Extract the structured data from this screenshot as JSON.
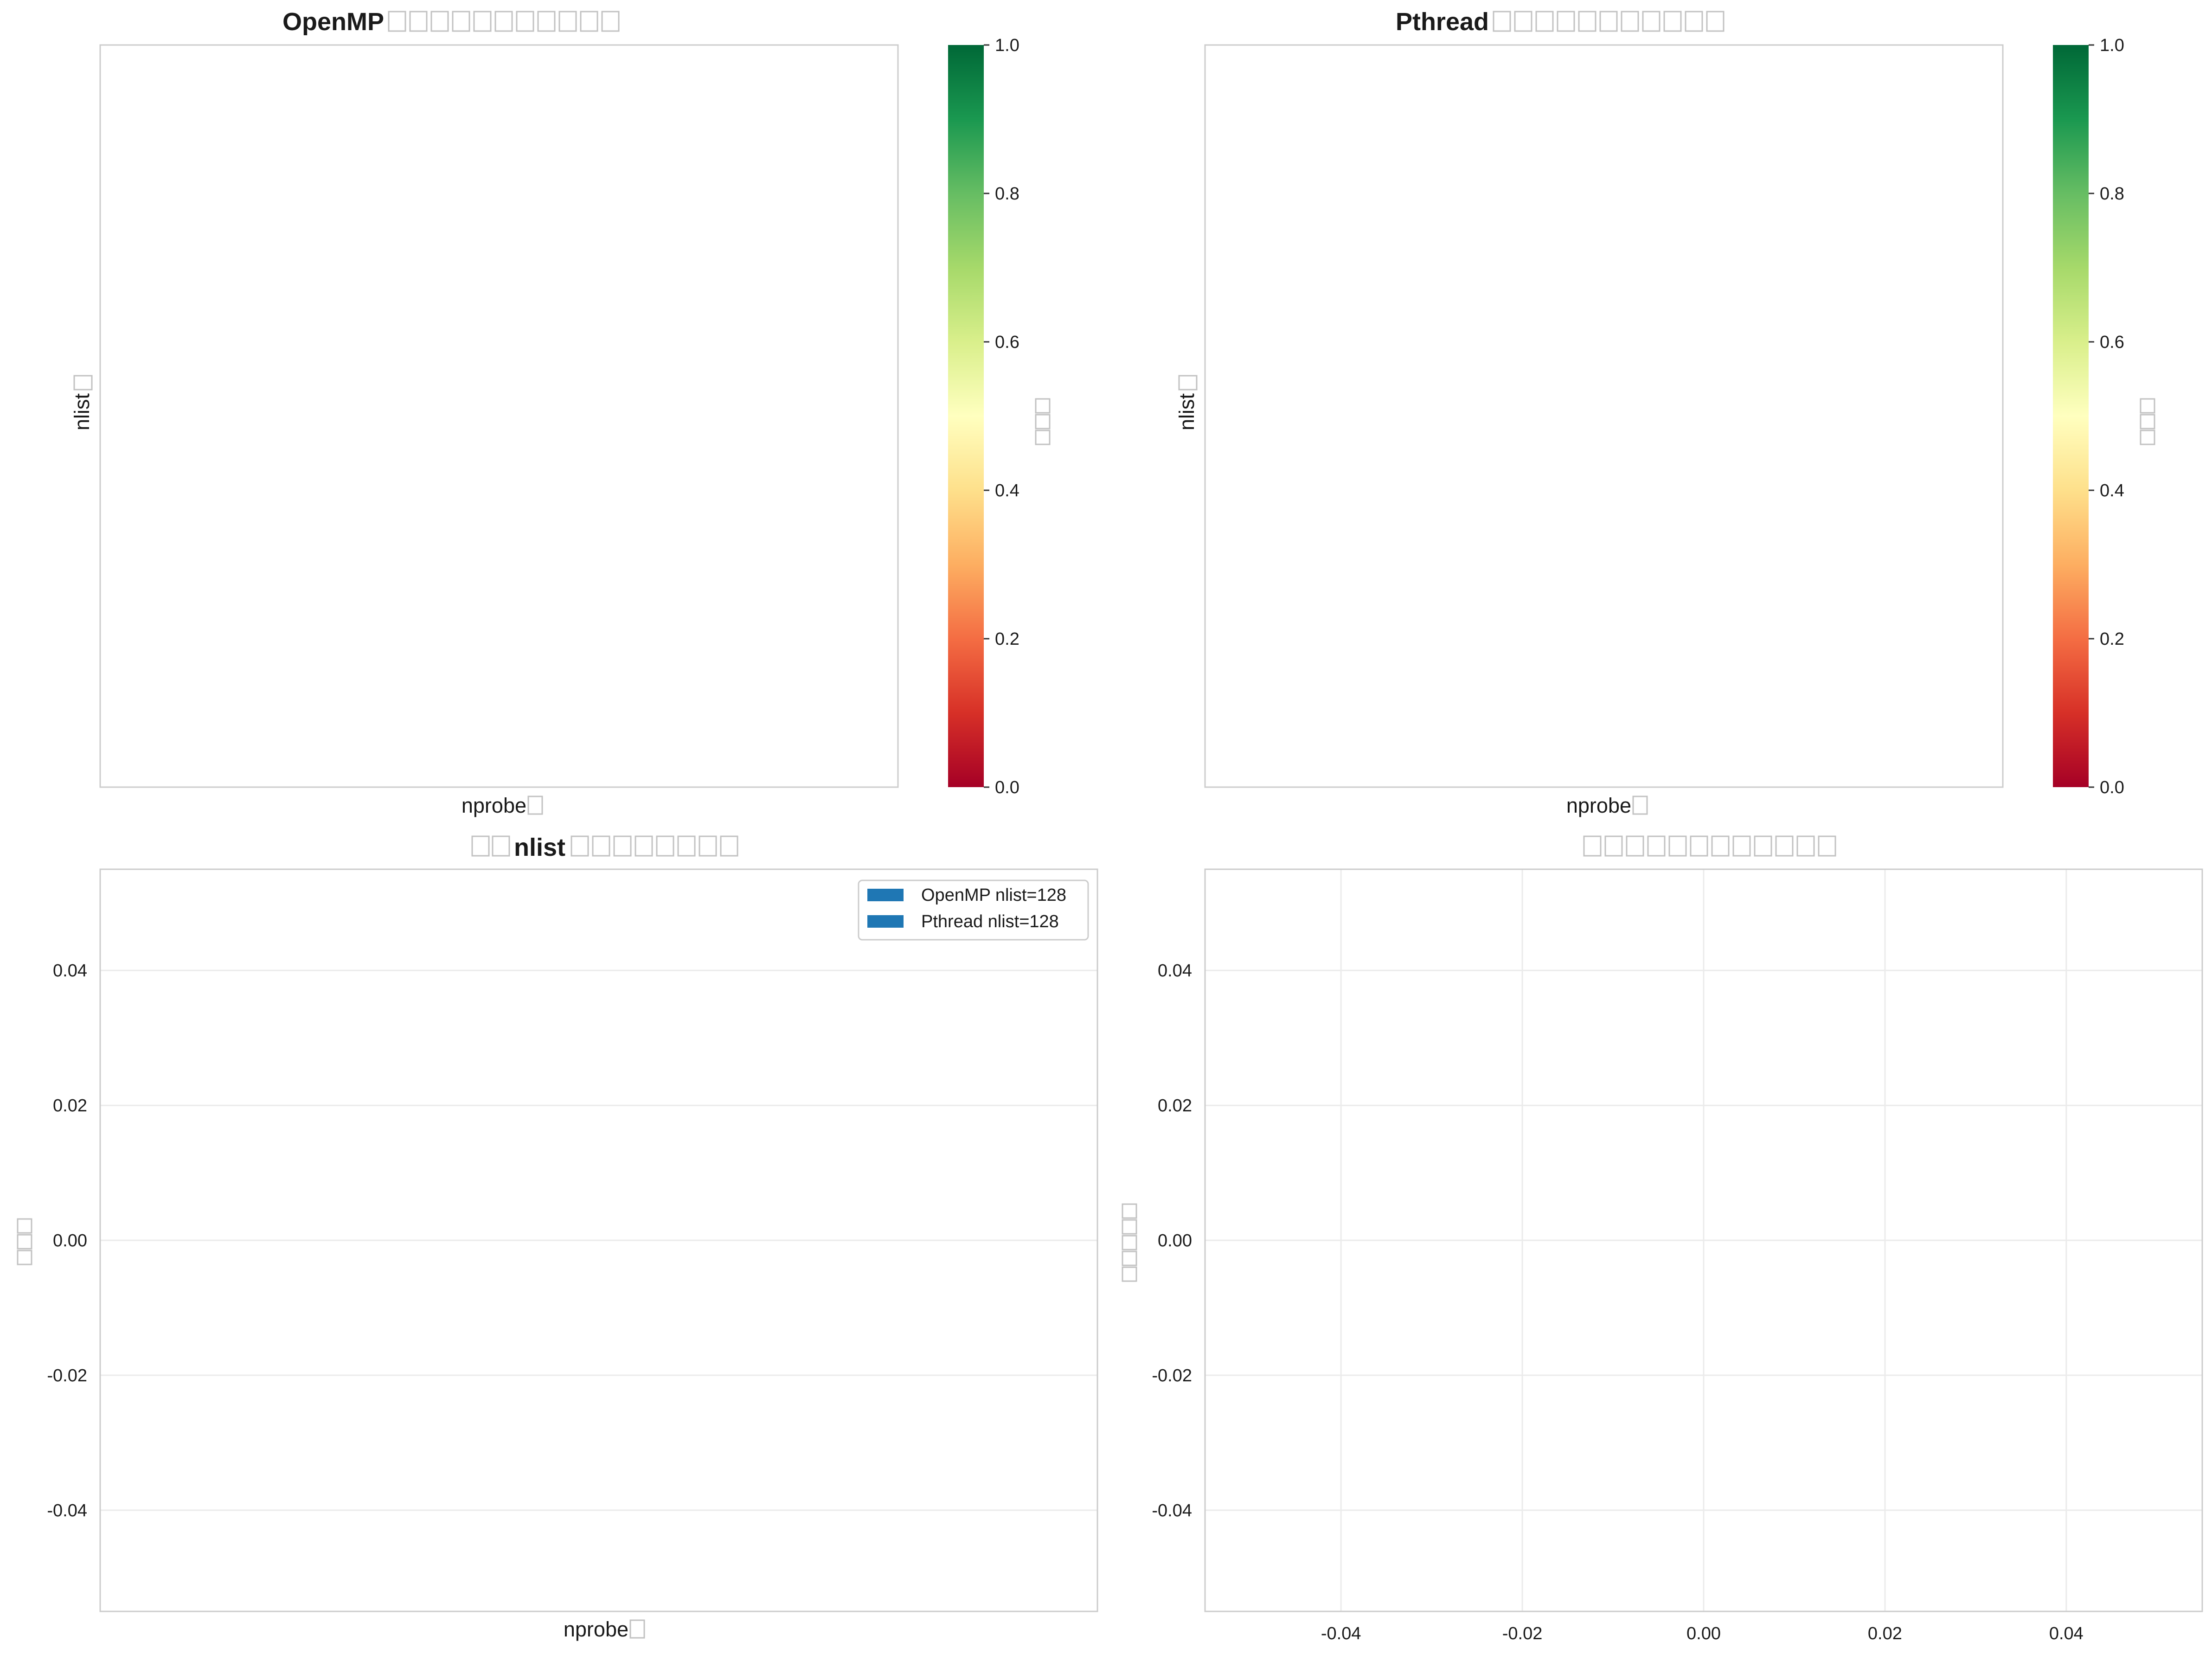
{
  "chart_data": [
    {
      "type": "heatmap",
      "title": "OpenMP",
      "xlabel": "nprobe",
      "ylabel": "nlist",
      "values": [],
      "colorbar": {
        "colormap": "RdYlGn",
        "range": [
          0.0,
          1.0
        ],
        "ticks": [
          "0.0",
          "0.2",
          "0.4",
          "0.6",
          "0.8",
          "1.0"
        ]
      }
    },
    {
      "type": "heatmap",
      "title": "Pthread",
      "xlabel": "nprobe",
      "ylabel": "nlist",
      "values": [],
      "colorbar": {
        "colormap": "RdYlGn",
        "range": [
          0.0,
          1.0
        ],
        "ticks": [
          "0.0",
          "0.2",
          "0.4",
          "0.6",
          "0.8",
          "1.0"
        ]
      }
    },
    {
      "type": "bar",
      "title": "nlist",
      "xlabel": "nprobe",
      "ylabel": "",
      "categories": [],
      "series": [
        {
          "name": "OpenMP nlist=128",
          "values": [],
          "color": "#1f77b4"
        },
        {
          "name": "Pthread nlist=128",
          "values": [],
          "color": "#1f77b4"
        }
      ],
      "ylim": [
        -0.055,
        0.055
      ],
      "yticks": [
        "0.04",
        "0.02",
        "0.00",
        "-0.02",
        "-0.04"
      ],
      "legend": "top-right",
      "grid": true
    },
    {
      "type": "scatter",
      "title": "",
      "xlabel": "",
      "ylabel": "",
      "series": [],
      "xlim": [
        -0.055,
        0.055
      ],
      "ylim": [
        -0.055,
        0.055
      ],
      "xticks": [
        "-0.04",
        "-0.02",
        "0.00",
        "0.02",
        "0.04"
      ],
      "yticks": [
        "0.04",
        "0.02",
        "0.00",
        "-0.02",
        "-0.04"
      ],
      "grid": true
    }
  ]
}
